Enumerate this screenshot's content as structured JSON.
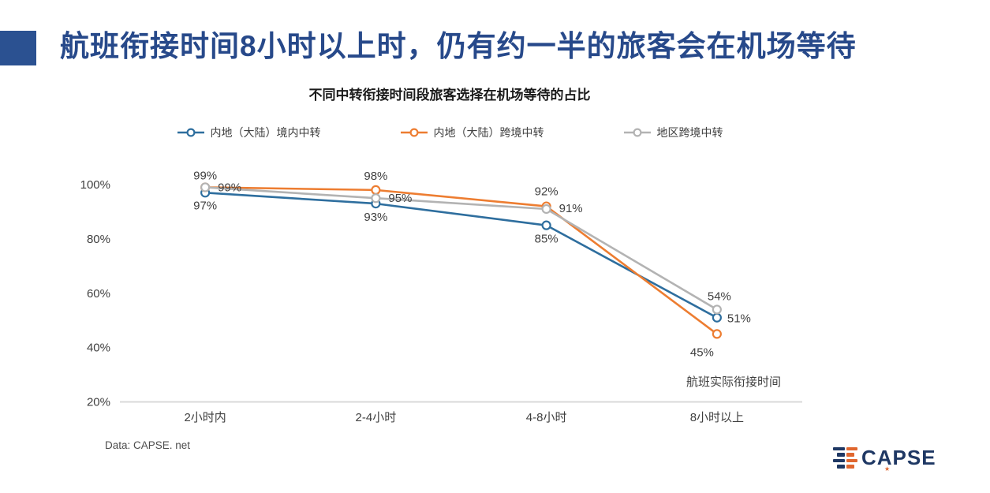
{
  "header": {
    "title": "航班衔接时间8小时以上时，仍有约一半的旅客会在机场等待",
    "accent_color": "#2B5191"
  },
  "chart_data": {
    "type": "line",
    "title": "不同中转衔接时间段旅客选择在机场等待的占比",
    "categories": [
      "2小时内",
      "2-4小时",
      "4-8小时",
      "8小时以上"
    ],
    "series": [
      {
        "name": "内地（大陆）境内中转",
        "color": "#2E6E9E",
        "values": [
          97,
          93,
          85,
          51
        ]
      },
      {
        "name": "内地（大陆）跨境中转",
        "color": "#ED7D31",
        "values": [
          99,
          98,
          92,
          45
        ]
      },
      {
        "name": "地区跨境中转",
        "color": "#B3B3B3",
        "values": [
          99,
          95,
          91,
          54
        ]
      }
    ],
    "y_ticks": [
      100,
      80,
      60,
      40,
      20
    ],
    "y_tick_labels": [
      "100%",
      "80%",
      "60%",
      "40%",
      "20%"
    ],
    "ylim": [
      20,
      100
    ],
    "x_axis_annotation": "航班实际衔接时间",
    "legend_position": "top",
    "grid": false,
    "marker": "open-circle",
    "data_labels": true,
    "label_color": "#3F3F3F",
    "axis_color": "#D8D8D8"
  },
  "footer": {
    "source": "Data: CAPSE. net",
    "logo_text": "CAPSE"
  }
}
